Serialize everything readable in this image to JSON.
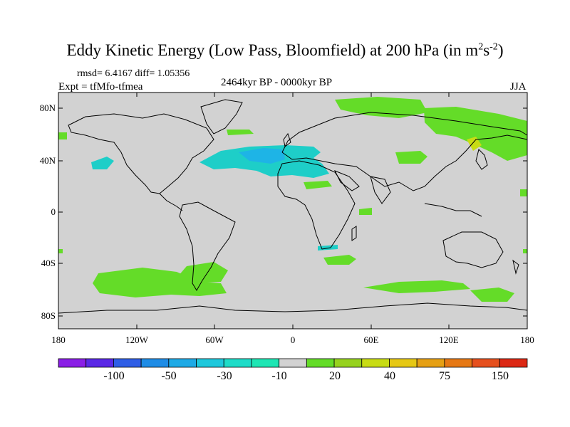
{
  "title": {
    "main": "Eddy Kinetic Energy (Low Pass, Bloomfield) at 200 hPa (in m",
    "sup1": "2",
    "mid": "s",
    "sup2": "-2",
    "end": ")"
  },
  "stats": "rmsd= 6.4167 diff= 1.05356",
  "expt": "Expt = tfMfo-tfmea",
  "period": "2464kyr BP - 0000kyr BP",
  "season": "JJA",
  "y_axis_labels": [
    "80N",
    "40N",
    "0",
    "40S",
    "80S"
  ],
  "x_axis_labels": [
    "180",
    "120W",
    "60W",
    "0",
    "60E",
    "120E",
    "180"
  ],
  "colorbar": {
    "colors": [
      "#8a1ee6",
      "#5a28e6",
      "#2f5ee6",
      "#1e8ce6",
      "#1eaae6",
      "#1ec8dc",
      "#1edcc8",
      "#1ee6b4",
      "#d2d2d2",
      "#64dc28",
      "#96d21e",
      "#c8dc14",
      "#e6c814",
      "#e6a014",
      "#e67814",
      "#e6501e",
      "#dc2814"
    ],
    "labels": [
      "-100",
      "-50",
      "-30",
      "-10",
      "20",
      "40",
      "75",
      "150"
    ]
  },
  "colors": {
    "background_field": "#d2d2d2",
    "pos_green": "#64dc28",
    "neg_cyan": "#1ecec8",
    "neg_blue": "#1eb4e6",
    "yellow": "#c8dc14"
  }
}
